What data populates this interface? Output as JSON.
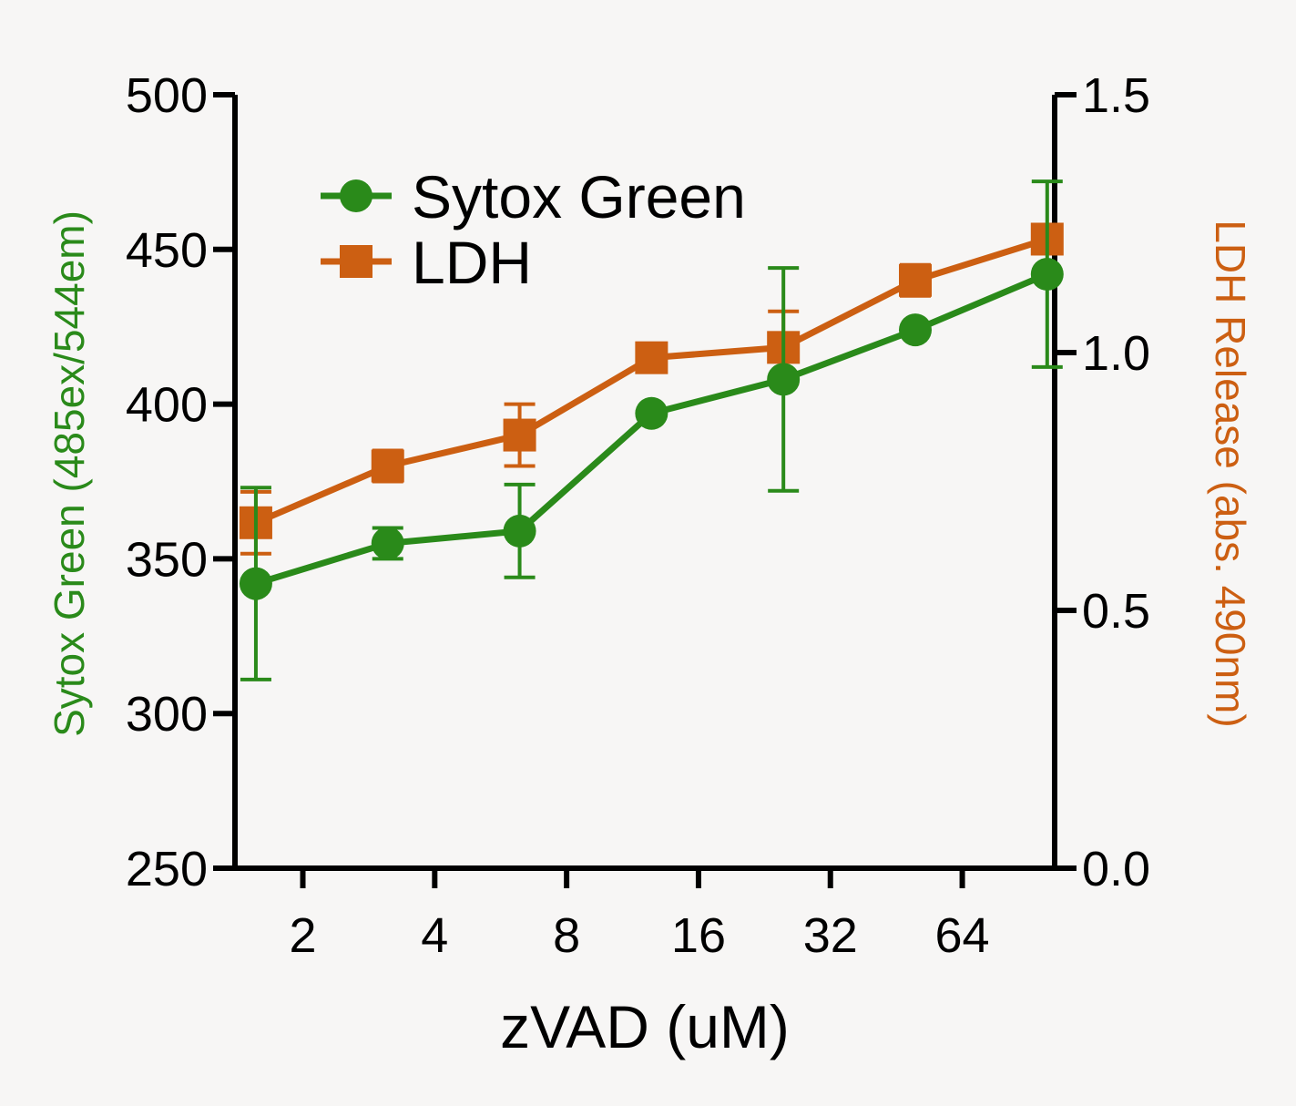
{
  "chart_data": {
    "type": "line",
    "xlabel": "zVAD (uM)",
    "x_scale": "log2",
    "x_ticks": [
      2,
      4,
      8,
      16,
      32,
      64
    ],
    "x_tick_labels": [
      "2",
      "4",
      "8",
      "16",
      "32",
      "64"
    ],
    "xlim": [
      1.4,
      104
    ],
    "ylabel_left": "Sytox Green (485ex/544em)",
    "ylabel_right": "LDH Release (abs. 490nm)",
    "ylim_left": [
      250,
      500
    ],
    "ylim_right": [
      0.0,
      1.5
    ],
    "y_ticks_left": [
      250,
      300,
      350,
      400,
      450,
      500
    ],
    "y_tick_labels_left": [
      "250",
      "300",
      "350",
      "400",
      "450",
      "500"
    ],
    "y_ticks_right": [
      0.0,
      0.5,
      1.0,
      1.5
    ],
    "y_tick_labels_right": [
      "0.0",
      "0.5",
      "1.0",
      "1.5"
    ],
    "x": [
      1.5625,
      3.125,
      6.25,
      12.5,
      25,
      50,
      100
    ],
    "series": [
      {
        "name": "Sytox Green",
        "axis": "left",
        "marker": "circle",
        "color": "#2a8a1a",
        "values": [
          342,
          355,
          359,
          397,
          408,
          424,
          442
        ],
        "errors": [
          31,
          5,
          15,
          0,
          36,
          0,
          30
        ]
      },
      {
        "name": "LDH",
        "axis": "right",
        "marker": "square",
        "color": "#cc5f12",
        "values": [
          0.67,
          0.78,
          0.84,
          0.99,
          1.01,
          1.14,
          1.22
        ],
        "errors": [
          0.06,
          0.03,
          0.06,
          0.0,
          0.07,
          0.03,
          0.0
        ]
      }
    ],
    "legend_position": "top-left"
  }
}
